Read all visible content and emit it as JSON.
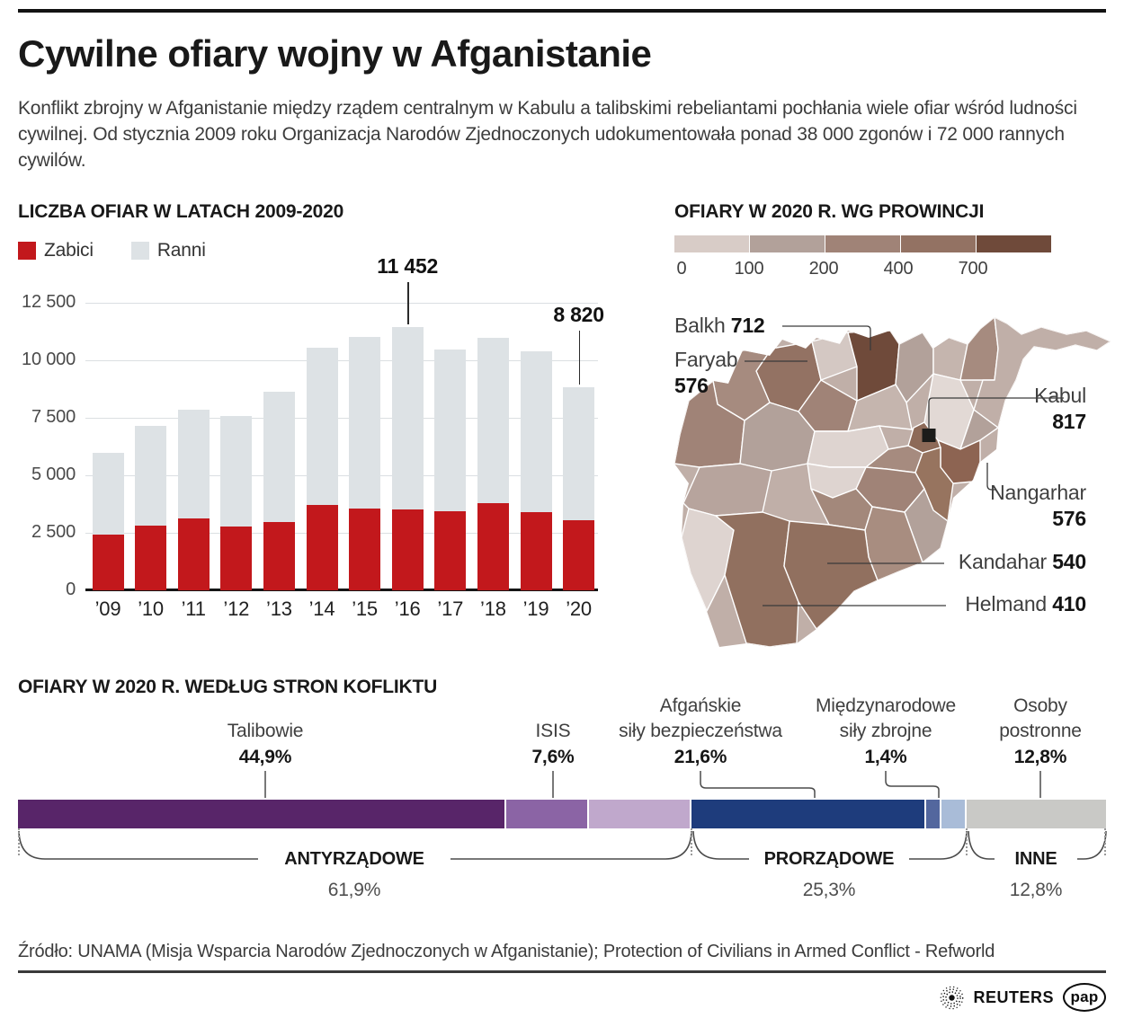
{
  "header": {
    "title": "Cywilne ofiary wojny w Afganistanie",
    "intro": "Konflikt zbrojny w Afganistanie między rządem centralnym w Kabulu a talibskimi rebeliantami pochłania wiele ofiar wśród ludności cywilnej. Od stycznia 2009 roku Organizacja Narodów Zjednoczonych udokumentowała ponad 38 000 zgonów i 72 000 rannych cywilów."
  },
  "chart_data": [
    {
      "type": "bar",
      "stacked": true,
      "title": "LICZBA OFIAR W LATACH 2009-2020",
      "categories": [
        "’09",
        "’10",
        "’11",
        "’12",
        "’13",
        "’14",
        "’15",
        "’16",
        "’17",
        "’18",
        "’19",
        "’20"
      ],
      "series": [
        {
          "name": "Zabici",
          "color": "#c2181c",
          "values": [
            2412,
            2794,
            3133,
            2769,
            2969,
            3701,
            3545,
            3527,
            3442,
            3804,
            3403,
            3035
          ]
        },
        {
          "name": "Ranni",
          "color": "#dde2e5",
          "values": [
            3557,
            4368,
            4709,
            4821,
            5668,
            6834,
            7457,
            7925,
            7019,
            7189,
            6989,
            5785
          ]
        }
      ],
      "ylim": [
        0,
        12500
      ],
      "yticks": [
        {
          "value": 12500,
          "label": "12 500"
        },
        {
          "value": 10000,
          "label": "10 000"
        },
        {
          "value": 7500,
          "label": "7 500"
        },
        {
          "value": 5000,
          "label": "5 000"
        },
        {
          "value": 2500,
          "label": "2 500"
        },
        {
          "value": 0,
          "label": "0"
        }
      ],
      "grid": true,
      "legend_position": "top-left",
      "annotations": [
        {
          "category_index": 7,
          "label": "11 452"
        },
        {
          "category_index": 11,
          "label": "8 820"
        }
      ]
    },
    {
      "type": "choropleth",
      "title": "OFIARY W 2020 R. WG PROWINCJI",
      "legend": {
        "thresholds": [
          "0",
          "100",
          "200",
          "400",
          "700"
        ],
        "colors": [
          "#d8ccc7",
          "#b2a19a",
          "#a08377",
          "#937263",
          "#6f4a3a"
        ]
      },
      "callouts": [
        {
          "name": "Balkh",
          "value": "712"
        },
        {
          "name": "Faryab",
          "value": "576"
        },
        {
          "name": "Kabul",
          "value": "817"
        },
        {
          "name": "Nangarhar",
          "value": "576"
        },
        {
          "name": "Kandahar",
          "value": "540"
        },
        {
          "name": "Helmand",
          "value": "410"
        }
      ]
    },
    {
      "type": "stacked-bar",
      "title": "OFIARY W 2020 R. WEDŁUG STRON KOFLIKTU",
      "segments": [
        {
          "name": "Talibowie",
          "label_lines": [
            "Talibowie"
          ],
          "pct": 44.9,
          "pct_label": "44,9%",
          "color": "#582569",
          "labeled": true
        },
        {
          "name": "ISIS",
          "label_lines": [
            "ISIS"
          ],
          "pct": 7.6,
          "pct_label": "7,6%",
          "color": "#8b64a5",
          "labeled": true
        },
        {
          "name": "",
          "label_lines": [],
          "pct": 9.4,
          "pct_label": "",
          "color": "#c0a8cc",
          "labeled": false
        },
        {
          "name": "Afgańskie siły bezpieczeństwa",
          "label_lines": [
            "Afgańskie",
            "siły bezpieczeństwa"
          ],
          "pct": 21.6,
          "pct_label": "21,6%",
          "color": "#1e3c7c",
          "labeled": true
        },
        {
          "name": "Międzynarodowe siły zbrojne",
          "label_lines": [
            "Międzynarodowe",
            "siły zbrojne"
          ],
          "pct": 1.4,
          "pct_label": "1,4%",
          "color": "#53679e",
          "labeled": true
        },
        {
          "name": "",
          "label_lines": [],
          "pct": 2.3,
          "pct_label": "",
          "color": "#a9bcd8",
          "labeled": false
        },
        {
          "name": "Osoby postronne",
          "label_lines": [
            "Osoby",
            "postronne"
          ],
          "pct": 12.8,
          "pct_label": "12,8%",
          "color": "#c9c9c6",
          "labeled": true
        }
      ],
      "groups": [
        {
          "name": "ANTYRZĄDOWE",
          "pct_label": "61,9%"
        },
        {
          "name": "PRORZĄDOWE",
          "pct_label": "25,3%"
        },
        {
          "name": "INNE",
          "pct_label": "12,8%"
        }
      ]
    }
  ],
  "footer": {
    "source": "Źródło: UNAMA (Misja Wsparcia Narodów Zjednoczonych w Afganistanie); Protection of Civilians in Armed Conflict - Refworld",
    "reuters": "REUTERS",
    "pap": "pap"
  }
}
